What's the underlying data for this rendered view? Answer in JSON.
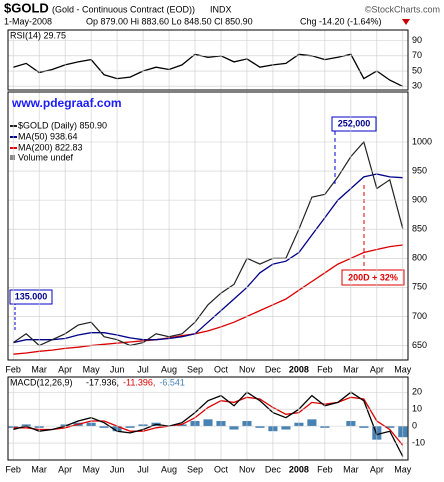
{
  "header": {
    "symbol": "$GOLD",
    "name": "(Gold - Continuous Contract (EOD))",
    "exchange": "INDX",
    "copyright": "©StockCharts.com",
    "date": "1-May-2008",
    "quote": "Op 879.00 Hi 883.60 Lo 848.50 Cl 850.90",
    "change": "Chg -14.20 (-1.64%)"
  },
  "chart_data": [
    {
      "type": "line",
      "title": "RSI(14) 29.75",
      "x": [
        0,
        0.5,
        1,
        1.5,
        2,
        2.5,
        3,
        3.5,
        4,
        4.5,
        5,
        5.5,
        6,
        6.5,
        7,
        7.5,
        8,
        8.5,
        9,
        9.5,
        10,
        10.5,
        11,
        11.5,
        12,
        12.5,
        13,
        13.5,
        14,
        14.5,
        15
      ],
      "xlim": [
        -0.2,
        15.2
      ],
      "ylim": [
        25,
        104
      ],
      "yticks": [
        90,
        70,
        50,
        30
      ],
      "grid": true,
      "series": [
        {
          "color": "#000000",
          "values": [
            55,
            60,
            48,
            52,
            58,
            62,
            65,
            45,
            40,
            42,
            50,
            55,
            52,
            58,
            72,
            68,
            70,
            62,
            66,
            55,
            58,
            60,
            72,
            70,
            65,
            68,
            72,
            40,
            50,
            38,
            29.75
          ]
        }
      ]
    },
    {
      "type": "line",
      "site": "www.pdegraaf.com",
      "x": [
        0,
        0.5,
        1,
        1.5,
        2,
        2.5,
        3,
        3.5,
        4,
        4.5,
        5,
        5.5,
        6,
        6.5,
        7,
        7.5,
        8,
        8.5,
        9,
        9.5,
        10,
        10.5,
        11,
        11.5,
        12,
        12.5,
        13,
        13.5,
        14,
        14.5,
        15
      ],
      "xlim": [
        -0.2,
        15.2
      ],
      "ylim": [
        625,
        1086
      ],
      "yticks": [
        1000,
        950,
        900,
        850,
        800,
        750,
        700,
        650
      ],
      "grid": true,
      "xticks": [
        {
          "value": 0,
          "label": "Feb"
        },
        {
          "value": 1,
          "label": "Mar"
        },
        {
          "value": 2,
          "label": "Apr"
        },
        {
          "value": 3,
          "label": "May"
        },
        {
          "value": 4,
          "label": "Jun"
        },
        {
          "value": 5,
          "label": "Jul"
        },
        {
          "value": 6,
          "label": "Aug"
        },
        {
          "value": 7,
          "label": "Sep"
        },
        {
          "value": 8,
          "label": "Oct"
        },
        {
          "value": 9,
          "label": "Nov"
        },
        {
          "value": 10,
          "label": "Dec"
        },
        {
          "value": 11,
          "label": "2008"
        },
        {
          "value": 12,
          "label": "Feb"
        },
        {
          "value": 13,
          "label": "Mar"
        },
        {
          "value": 14,
          "label": "Apr"
        },
        {
          "value": 15,
          "label": "May"
        }
      ],
      "series": [
        {
          "name": "$GOLD (Daily) 850.90",
          "color": "#222222",
          "values": [
            655,
            670,
            650,
            660,
            670,
            685,
            690,
            665,
            660,
            650,
            655,
            670,
            665,
            670,
            690,
            720,
            740,
            755,
            800,
            790,
            800,
            800,
            850,
            905,
            910,
            940,
            975,
            1000,
            920,
            935,
            850.9
          ]
        },
        {
          "name": "MA(50) 938.64",
          "color": "#00008b",
          "values": [
            655,
            660,
            660,
            660,
            662,
            668,
            672,
            672,
            668,
            663,
            660,
            660,
            662,
            665,
            670,
            690,
            710,
            730,
            750,
            775,
            790,
            795,
            810,
            840,
            870,
            900,
            920,
            940,
            945,
            940,
            938.64
          ]
        },
        {
          "name": "MA(200) 822.83",
          "color": "#dd0000",
          "values": [
            635,
            637,
            640,
            642,
            645,
            647,
            650,
            652,
            654,
            656,
            658,
            660,
            663,
            667,
            670,
            675,
            682,
            690,
            700,
            710,
            720,
            730,
            745,
            760,
            775,
            790,
            800,
            810,
            815,
            820,
            822.83
          ]
        }
      ],
      "volume_label": "Volume undef",
      "annotations": [
        "135.000",
        "252,000",
        "200D + 32%"
      ]
    },
    {
      "type": "line",
      "title": "MACD(12,26,9)",
      "x": [
        0,
        0.5,
        1,
        1.5,
        2,
        2.5,
        3,
        3.5,
        4,
        4.5,
        5,
        5.5,
        6,
        6.5,
        7,
        7.5,
        8,
        8.5,
        9,
        9.5,
        10,
        10.5,
        11,
        11.5,
        12,
        12.5,
        13,
        13.5,
        14,
        14.5,
        15
      ],
      "xlim": [
        -0.2,
        15.2
      ],
      "ylim": [
        -20,
        29
      ],
      "yticks": [
        20,
        10,
        0,
        -10
      ],
      "grid": true,
      "xticks": [
        {
          "value": 0,
          "label": "Feb"
        },
        {
          "value": 1,
          "label": "Mar"
        },
        {
          "value": 2,
          "label": "Apr"
        },
        {
          "value": 3,
          "label": "May"
        },
        {
          "value": 4,
          "label": "Jun"
        },
        {
          "value": 5,
          "label": "Jul"
        },
        {
          "value": 6,
          "label": "Aug"
        },
        {
          "value": 7,
          "label": "Sep"
        },
        {
          "value": 8,
          "label": "Oct"
        },
        {
          "value": 9,
          "label": "Nov"
        },
        {
          "value": 10,
          "label": "Dec"
        },
        {
          "value": 11,
          "label": "2008"
        },
        {
          "value": 12,
          "label": "Feb"
        },
        {
          "value": 13,
          "label": "Mar"
        },
        {
          "value": 14,
          "label": "Apr"
        },
        {
          "value": 15,
          "label": "May"
        }
      ],
      "series": [
        {
          "name": "-17.936,",
          "color": "#000000",
          "values": [
            -2,
            0,
            -3,
            -2,
            0,
            3,
            5,
            2,
            -3,
            -4,
            -2,
            1,
            0,
            2,
            8,
            15,
            18,
            12,
            20,
            15,
            8,
            5,
            10,
            18,
            12,
            14,
            20,
            15,
            -5,
            -3,
            -17.936
          ]
        },
        {
          "name": "-11.396,",
          "color": "#dd0000",
          "values": [
            -1,
            -1,
            -2,
            -2,
            -1,
            1,
            3,
            3,
            0,
            -3,
            -3,
            -1,
            0,
            1,
            5,
            11,
            15,
            14,
            17,
            16,
            11,
            7,
            8,
            14,
            13,
            14,
            17,
            16,
            3,
            -2,
            -11.396
          ]
        },
        {
          "name": "-6.541",
          "color": "#4682b4",
          "kind": "histogram",
          "values": [
            -1,
            1,
            -1,
            0,
            1,
            2,
            2,
            -1,
            -3,
            -1,
            1,
            2,
            0,
            1,
            3,
            4,
            3,
            -2,
            3,
            -1,
            -3,
            -2,
            2,
            4,
            -1,
            0,
            3,
            -1,
            -8,
            -1,
            -6.541
          ]
        }
      ]
    }
  ]
}
